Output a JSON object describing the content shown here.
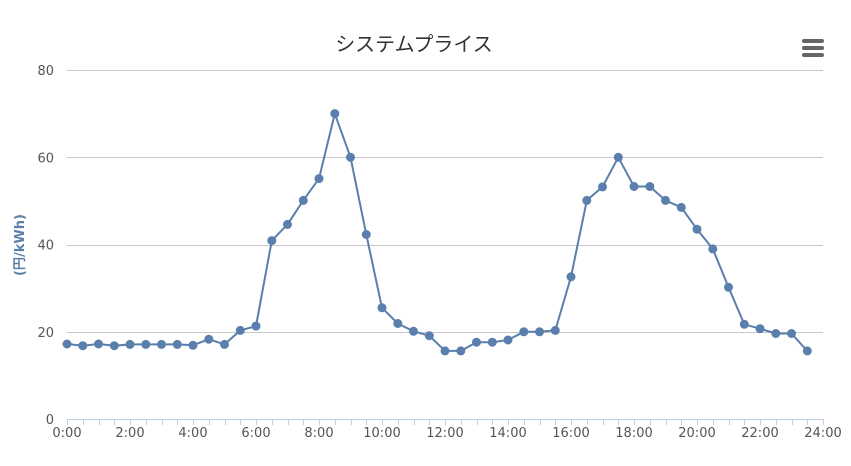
{
  "icons": {
    "menu": "hamburger-menu-icon"
  },
  "colors": {
    "series": "#5b7fad",
    "grid": "#c8c8c8",
    "axis": "#bfd0e0",
    "ylabel": "#5a7fa8"
  },
  "chart_data": {
    "type": "line",
    "title": "システムプライス",
    "xlabel": "",
    "ylabel": "(円/kWh)",
    "xlim": [
      "0:00",
      "24:00"
    ],
    "ylim": [
      0,
      80
    ],
    "grid": "horizontal",
    "legend": "none",
    "x_tick_labels": [
      "0:00",
      "2:00",
      "4:00",
      "6:00",
      "8:00",
      "10:00",
      "12:00",
      "14:00",
      "16:00",
      "18:00",
      "20:00",
      "22:00",
      "24:00"
    ],
    "y_tick_labels": [
      "0",
      "20",
      "40",
      "60",
      "80"
    ],
    "x": [
      "0:00",
      "0:30",
      "1:00",
      "1:30",
      "2:00",
      "2:30",
      "3:00",
      "3:30",
      "4:00",
      "4:30",
      "5:00",
      "5:30",
      "6:00",
      "6:30",
      "7:00",
      "7:30",
      "8:00",
      "8:30",
      "9:00",
      "9:30",
      "10:00",
      "10:30",
      "11:00",
      "11:30",
      "12:00",
      "12:30",
      "13:00",
      "13:30",
      "14:00",
      "14:30",
      "15:00",
      "15:30",
      "16:00",
      "16:30",
      "17:00",
      "17:30",
      "18:00",
      "18:30",
      "19:00",
      "19:30",
      "20:00",
      "20:30",
      "21:00",
      "21:30",
      "22:00",
      "22:30",
      "23:00",
      "23:30"
    ],
    "series": [
      {
        "values": [
          17.2,
          16.8,
          17.2,
          16.8,
          17.1,
          17.1,
          17.1,
          17.1,
          16.9,
          18.3,
          17.1,
          20.3,
          21.3,
          40.9,
          44.6,
          50.1,
          55.1,
          70.0,
          60.0,
          42.3,
          25.5,
          21.9,
          20.1,
          19.1,
          15.6,
          15.6,
          17.6,
          17.6,
          18.1,
          20.0,
          20.0,
          20.3,
          32.6,
          50.1,
          53.2,
          60.0,
          53.3,
          53.3,
          50.1,
          48.5,
          43.5,
          39.0,
          30.2,
          21.7,
          20.7,
          19.6,
          19.6,
          15.6
        ]
      }
    ]
  }
}
